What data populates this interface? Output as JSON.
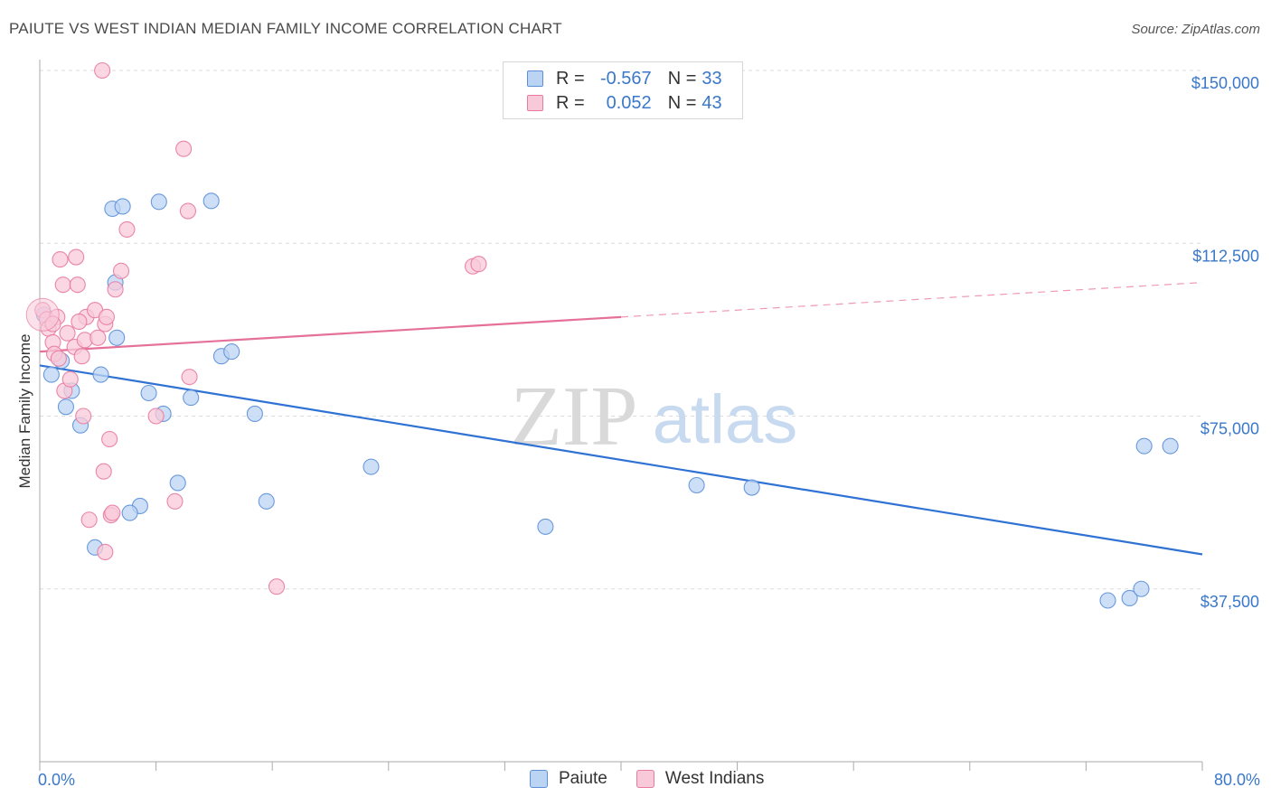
{
  "header": {
    "title": "PAIUTE VS WEST INDIAN MEDIAN FAMILY INCOME CORRELATION CHART",
    "source": "Source: ZipAtlas.com"
  },
  "watermark": {
    "zip": "ZIP",
    "atlas": "atlas"
  },
  "legend": {
    "r_label": "R =",
    "n_label": "N =",
    "rows": [
      {
        "r": "-0.567",
        "n": "33",
        "color": "#5b8fd8",
        "fill": "#bcd4f4"
      },
      {
        "r": "0.052",
        "n": "43",
        "color": "#e87aa0",
        "fill": "#f8c9d8"
      }
    ]
  },
  "bottom_legend": [
    {
      "label": "Paiute",
      "color": "#5b8fd8",
      "fill": "#bcd4f4"
    },
    {
      "label": "West Indians",
      "color": "#e87aa0",
      "fill": "#f8c9d8"
    }
  ],
  "chart_data": {
    "type": "scatter",
    "title": "PAIUTE VS WEST INDIAN MEDIAN FAMILY INCOME CORRELATION CHART",
    "xlabel": "",
    "ylabel": "Median Family Income",
    "xlim": [
      0,
      80
    ],
    "ylim": [
      0,
      150000
    ],
    "x_tick_labels": {
      "left": "0.0%",
      "right": "80.0%"
    },
    "y_ticks": [
      {
        "value": 150000,
        "label": "$150,000"
      },
      {
        "value": 112500,
        "label": "$112,500"
      },
      {
        "value": 75000,
        "label": "$75,000"
      },
      {
        "value": 37500,
        "label": "$37,500"
      }
    ],
    "grid": true,
    "legend_position": "top-center",
    "series": [
      {
        "name": "Paiute",
        "color": "#5b8fd8",
        "fill": "#bcd4f4",
        "trend": {
          "x": [
            0,
            80
          ],
          "y": [
            86000,
            45000
          ],
          "dashed_from": null
        },
        "points": [
          [
            0.3,
            97000
          ],
          [
            1.5,
            87000
          ],
          [
            0.8,
            84000
          ],
          [
            1.8,
            77000
          ],
          [
            2.2,
            80500
          ],
          [
            2.8,
            73000
          ],
          [
            5.2,
            104000
          ],
          [
            5.0,
            120000
          ],
          [
            5.7,
            120500
          ],
          [
            8.2,
            121500
          ],
          [
            11.8,
            121700
          ],
          [
            5.3,
            92000
          ],
          [
            4.2,
            84000
          ],
          [
            7.5,
            80000
          ],
          [
            8.5,
            75500
          ],
          [
            10.4,
            79000
          ],
          [
            12.5,
            88000
          ],
          [
            13.2,
            89000
          ],
          [
            14.8,
            75500
          ],
          [
            9.5,
            60500
          ],
          [
            6.9,
            55500
          ],
          [
            6.2,
            54000
          ],
          [
            3.8,
            46500
          ],
          [
            15.6,
            56500
          ],
          [
            22.8,
            64000
          ],
          [
            34.8,
            51000
          ],
          [
            45.2,
            60000
          ],
          [
            49.0,
            59500
          ],
          [
            76.0,
            68500
          ],
          [
            77.8,
            68500
          ],
          [
            73.5,
            35000
          ],
          [
            75.0,
            35500
          ],
          [
            75.8,
            37500
          ]
        ]
      },
      {
        "name": "West Indians",
        "color": "#e87aa0",
        "fill": "#f8c9d8",
        "trend": {
          "x": [
            0,
            80
          ],
          "y": [
            89000,
            104000
          ],
          "dashed_from": 40
        },
        "points": [
          [
            0.2,
            98000
          ],
          [
            0.5,
            96000
          ],
          [
            0.6,
            94000
          ],
          [
            0.9,
            91000
          ],
          [
            1.2,
            96500
          ],
          [
            1.0,
            88500
          ],
          [
            1.4,
            109000
          ],
          [
            1.6,
            103500
          ],
          [
            1.7,
            80500
          ],
          [
            1.9,
            93000
          ],
          [
            2.1,
            83000
          ],
          [
            2.4,
            90000
          ],
          [
            2.5,
            109500
          ],
          [
            2.6,
            103500
          ],
          [
            2.9,
            88000
          ],
          [
            3.0,
            75000
          ],
          [
            3.2,
            96500
          ],
          [
            3.1,
            91500
          ],
          [
            3.4,
            52500
          ],
          [
            3.8,
            98000
          ],
          [
            4.0,
            92000
          ],
          [
            4.5,
            95000
          ],
          [
            4.6,
            96500
          ],
          [
            4.8,
            70000
          ],
          [
            4.9,
            53500
          ],
          [
            5.0,
            54000
          ],
          [
            4.4,
            63000
          ],
          [
            4.5,
            45500
          ],
          [
            5.2,
            102500
          ],
          [
            5.6,
            106500
          ],
          [
            6.0,
            115500
          ],
          [
            4.3,
            150000
          ],
          [
            9.9,
            133000
          ],
          [
            10.2,
            119500
          ],
          [
            10.3,
            83500
          ],
          [
            8.0,
            75000
          ],
          [
            9.3,
            56500
          ],
          [
            16.3,
            38000
          ],
          [
            29.8,
            107500
          ],
          [
            30.2,
            108000
          ],
          [
            2.7,
            95500
          ],
          [
            1.3,
            87500
          ],
          [
            0.9,
            95000
          ]
        ]
      }
    ]
  }
}
